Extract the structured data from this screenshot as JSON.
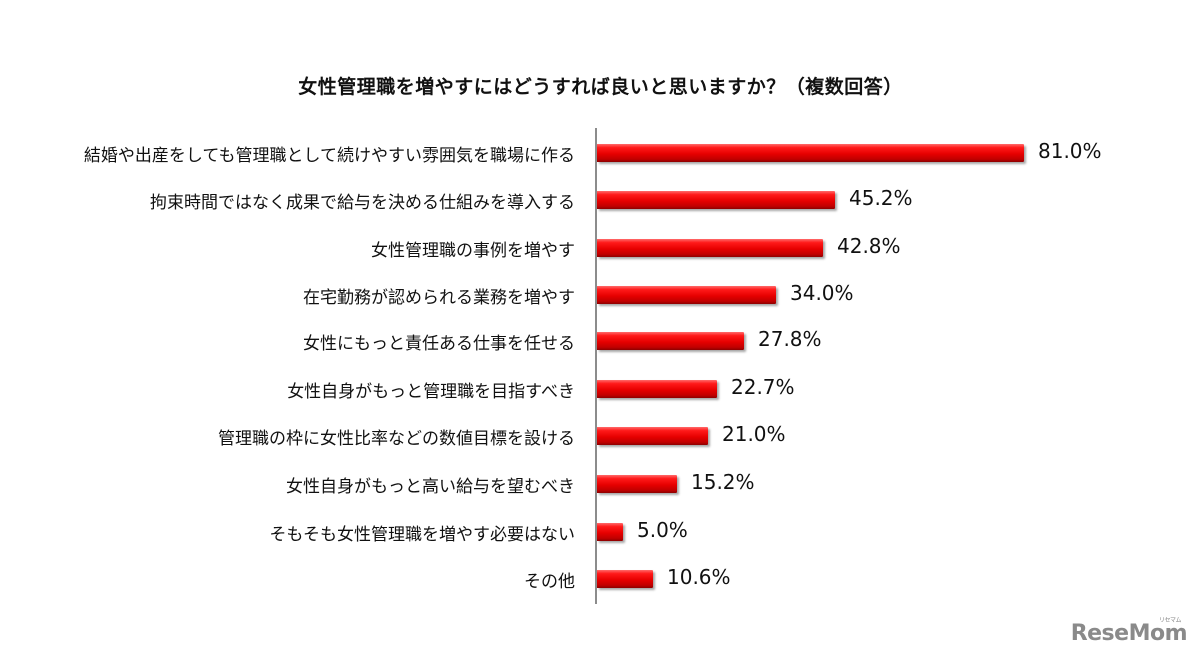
{
  "title": "女性管理職を増やすにはどうすれば良いと思いますか？（複数回答）",
  "watermark": {
    "text": "ReseMom",
    "ruby": "リセマム"
  },
  "chart_data": {
    "type": "bar",
    "orientation": "horizontal",
    "title": "女性管理職を増やすにはどうすれば良いと思いますか？（複数回答）",
    "xlabel": "",
    "ylabel": "",
    "unit": "%",
    "xlim": [
      0,
      100
    ],
    "grid": false,
    "legend": null,
    "bar_color": "#e60000",
    "categories": [
      "結婚や出産をしても管理職として続けやすい雰囲気を職場に作る",
      "拘束時間ではなく成果で給与を決める仕組みを導入する",
      "女性管理職の事例を増やす",
      "在宅勤務が認められる業務を増やす",
      "女性にもっと責任ある仕事を任せる",
      "女性自身がもっと管理職を目指すべき",
      "管理職の枠に女性比率などの数値目標を設ける",
      "女性自身がもっと高い給与を望むべき",
      "そもそも女性管理職を増やす必要はない",
      "その他"
    ],
    "values": [
      81.0,
      45.2,
      42.8,
      34.0,
      27.8,
      22.7,
      21.0,
      15.2,
      5.0,
      10.6
    ],
    "value_labels": [
      "81.0%",
      "45.2%",
      "42.8%",
      "34.0%",
      "27.8%",
      "22.7%",
      "21.0%",
      "15.2%",
      "5.0%",
      "10.6%"
    ]
  }
}
